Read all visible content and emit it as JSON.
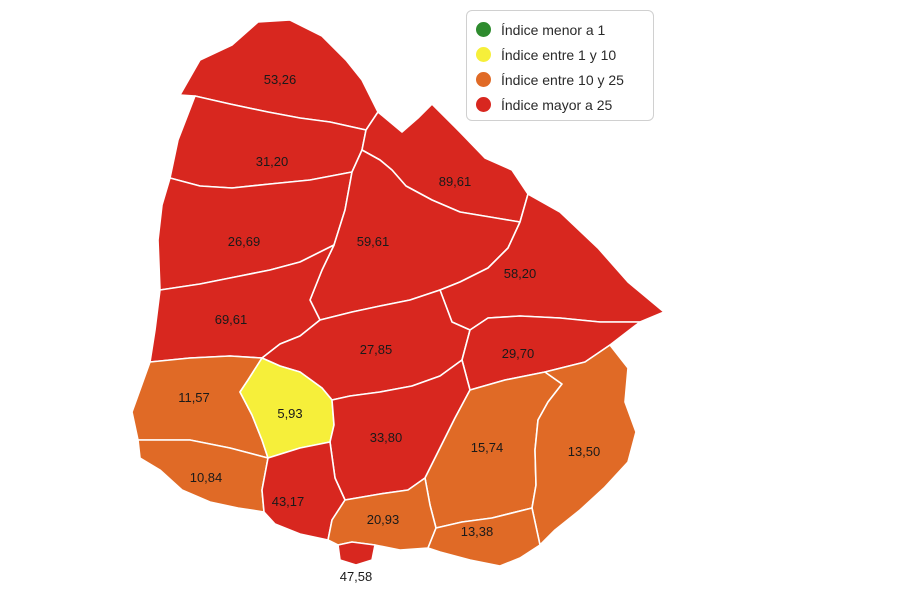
{
  "colors": {
    "red": "#d8271f",
    "orange": "#e06a26",
    "yellow": "#f6ef3a",
    "green": "#2e8b2e",
    "border": "#ffffff"
  },
  "legend": [
    {
      "label": "Índice menor a 1",
      "color": "#2e8b2e"
    },
    {
      "label": "Índice entre 1 y 10",
      "color": "#f6ef3a"
    },
    {
      "label": "Índice entre 10 y 25",
      "color": "#e06a26"
    },
    {
      "label": "Índice mayor a 25",
      "color": "#d8271f"
    }
  ],
  "departments": [
    {
      "value": "53,26",
      "category": "mayor a 25"
    },
    {
      "value": "31,20",
      "category": "mayor a 25"
    },
    {
      "value": "89,61",
      "category": "mayor a 25"
    },
    {
      "value": "26,69",
      "category": "mayor a 25"
    },
    {
      "value": "59,61",
      "category": "mayor a 25"
    },
    {
      "value": "58,20",
      "category": "mayor a 25"
    },
    {
      "value": "69,61",
      "category": "mayor a 25"
    },
    {
      "value": "27,85",
      "category": "mayor a 25"
    },
    {
      "value": "29,70",
      "category": "mayor a 25"
    },
    {
      "value": "11,57",
      "category": "entre 10 y 25"
    },
    {
      "value": "5,93",
      "category": "entre 1 y 10"
    },
    {
      "value": "33,80",
      "category": "mayor a 25"
    },
    {
      "value": "15,74",
      "category": "entre 10 y 25"
    },
    {
      "value": "13,50",
      "category": "entre 10 y 25"
    },
    {
      "value": "10,84",
      "category": "entre 10 y 25"
    },
    {
      "value": "43,17",
      "category": "mayor a 25"
    },
    {
      "value": "20,93",
      "category": "entre 10 y 25"
    },
    {
      "value": "13,38",
      "category": "entre 10 y 25"
    },
    {
      "value": "47,58",
      "category": "mayor a 25"
    }
  ]
}
